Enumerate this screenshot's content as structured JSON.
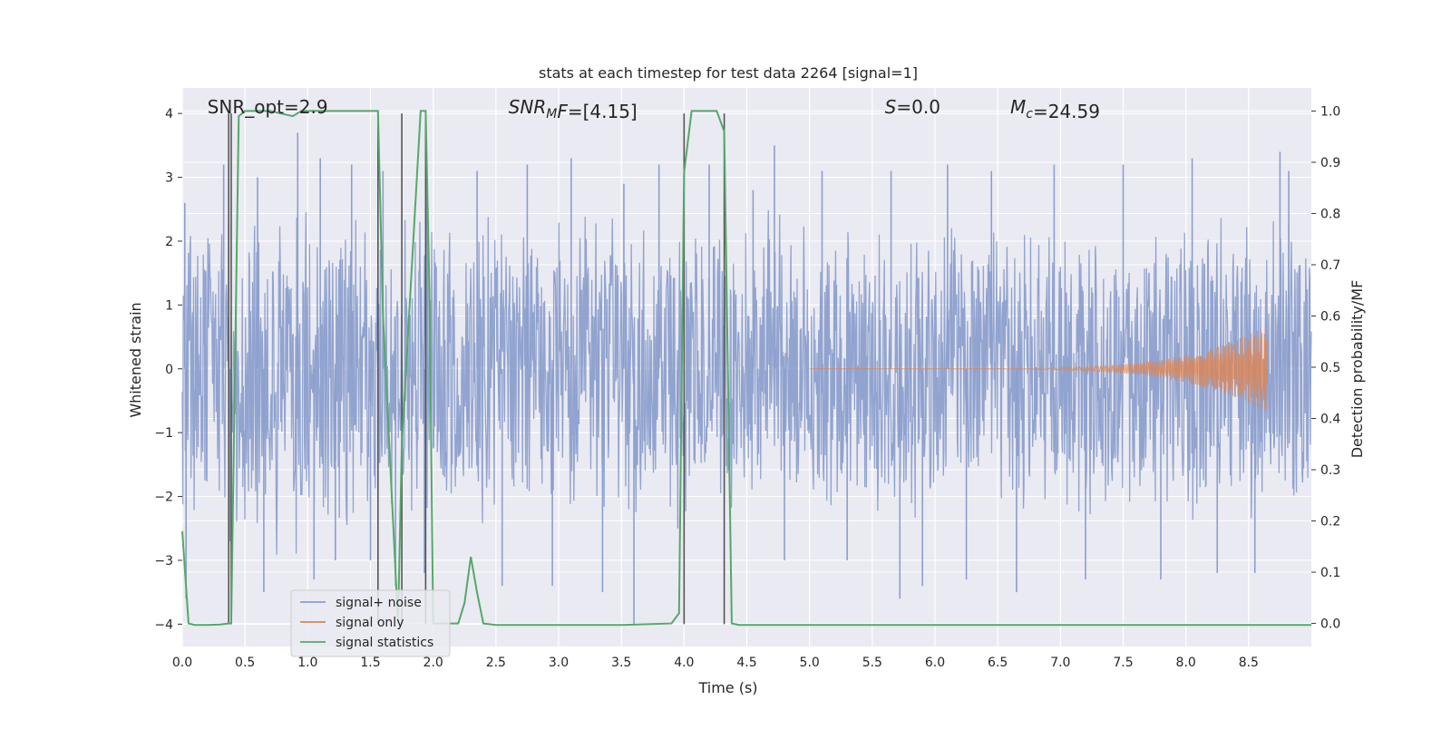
{
  "chart_data": {
    "type": "line",
    "title": "stats at each timestep for test data 2264 [signal=1]",
    "xlabel": "Time (s)",
    "ylabel": "Whitened strain",
    "y2label": "Detection probability/MF",
    "xlim": [
      0,
      9.0
    ],
    "ylim": [
      -4.35,
      4.4
    ],
    "y2lim": [
      -0.045,
      1.045
    ],
    "xticks": [
      0.0,
      0.5,
      1.0,
      1.5,
      2.0,
      2.5,
      3.0,
      3.5,
      4.0,
      4.5,
      5.0,
      5.5,
      6.0,
      6.5,
      7.0,
      7.5,
      8.0,
      8.5
    ],
    "xtick_labels": [
      "0.0",
      "0.5",
      "1.0",
      "1.5",
      "2.0",
      "2.5",
      "3.0",
      "3.5",
      "4.0",
      "4.5",
      "5.0",
      "5.5",
      "6.0",
      "6.5",
      "7.0",
      "7.5",
      "8.0",
      "8.5"
    ],
    "yticks": [
      -4,
      -3,
      -2,
      -1,
      0,
      1,
      2,
      3,
      4
    ],
    "ytick_labels": [
      "−4",
      "−3",
      "−2",
      "−1",
      "0",
      "1",
      "2",
      "3",
      "4"
    ],
    "y2ticks": [
      0.0,
      0.1,
      0.2,
      0.3,
      0.4,
      0.5,
      0.6,
      0.7,
      0.8,
      0.9,
      1.0
    ],
    "y2tick_labels": [
      "0.0",
      "0.1",
      "0.2",
      "0.3",
      "0.4",
      "0.5",
      "0.6",
      "0.7",
      "0.8",
      "0.9",
      "1.0"
    ],
    "grid": true,
    "legend_position": "lower-left",
    "annotations": [
      {
        "text": "SNR_opt=2.9",
        "x": 0.2,
        "y": 4.1
      },
      {
        "pre": "SNR",
        "sub": "M",
        "post": "F=[4.15]",
        "x": 2.6,
        "y": 4.1
      },
      {
        "pre": "S",
        "sub": "",
        "post": "=0.0",
        "x": 5.6,
        "y": 4.1
      },
      {
        "pre": "M",
        "sub": "c",
        "post": "=24.59",
        "x": 6.6,
        "y": 4.1
      }
    ],
    "vlines": {
      "color": "#555555",
      "x": [
        0.37,
        0.39,
        1.56,
        1.75,
        1.94,
        4.0,
        4.32
      ],
      "ymin": -4.0,
      "ymax": 4.0
    },
    "series": [
      {
        "name": "signal+ noise",
        "color": "#8c9fcc",
        "noise_envelope": [
          [
            0.0,
            2.4
          ],
          [
            0.5,
            2.6
          ],
          [
            1.0,
            2.6
          ],
          [
            1.5,
            2.4
          ],
          [
            2.0,
            2.5
          ],
          [
            2.5,
            2.5
          ],
          [
            3.0,
            2.4
          ],
          [
            3.5,
            2.4
          ],
          [
            4.0,
            2.4
          ],
          [
            4.5,
            2.3
          ],
          [
            5.0,
            2.3
          ],
          [
            5.5,
            2.4
          ],
          [
            6.0,
            2.4
          ],
          [
            6.5,
            2.4
          ],
          [
            7.0,
            2.4
          ],
          [
            7.5,
            2.4
          ],
          [
            8.0,
            2.4
          ],
          [
            8.5,
            2.4
          ],
          [
            9.0,
            2.4
          ]
        ],
        "peaks": [
          [
            0.02,
            2.6
          ],
          [
            0.03,
            -3.6
          ],
          [
            0.33,
            3.2
          ],
          [
            0.37,
            2.3
          ],
          [
            0.38,
            -2.7
          ],
          [
            0.6,
            3.0
          ],
          [
            0.65,
            -3.5
          ],
          [
            0.92,
            3.7
          ],
          [
            1.05,
            -3.3
          ],
          [
            1.1,
            3.3
          ],
          [
            1.22,
            -3.0
          ],
          [
            1.35,
            3.2
          ],
          [
            1.5,
            -3.0
          ],
          [
            1.6,
            3.1
          ],
          [
            1.7,
            -3.4
          ],
          [
            1.95,
            3.2
          ],
          [
            1.93,
            -3.2
          ],
          [
            2.35,
            3.1
          ],
          [
            2.55,
            -3.4
          ],
          [
            2.75,
            3.2
          ],
          [
            2.95,
            -3.4
          ],
          [
            3.1,
            3.3
          ],
          [
            3.35,
            -3.5
          ],
          [
            3.52,
            2.9
          ],
          [
            3.6,
            -4.0
          ],
          [
            3.8,
            3.2
          ],
          [
            3.95,
            -2.5
          ],
          [
            4.2,
            3.2
          ],
          [
            4.55,
            2.8
          ],
          [
            4.72,
            3.5
          ],
          [
            4.8,
            -3.0
          ],
          [
            5.1,
            3.1
          ],
          [
            5.3,
            -3.0
          ],
          [
            5.65,
            3.1
          ],
          [
            5.72,
            -3.6
          ],
          [
            5.9,
            -3.4
          ],
          [
            6.1,
            3.2
          ],
          [
            6.25,
            -3.3
          ],
          [
            6.45,
            3.1
          ],
          [
            6.65,
            -3.5
          ],
          [
            6.95,
            3.2
          ],
          [
            7.2,
            -3.3
          ],
          [
            7.5,
            3.2
          ],
          [
            7.8,
            -3.3
          ],
          [
            8.05,
            3.3
          ],
          [
            8.25,
            -3.2
          ],
          [
            8.55,
            -3.2
          ],
          [
            8.75,
            3.4
          ],
          [
            8.82,
            3.1
          ]
        ]
      },
      {
        "name": "signal only",
        "color": "#dd8452",
        "chirp_start": 5.0,
        "chirp_end": 8.65,
        "peak_amplitude": 0.7
      },
      {
        "name": "signal statistics",
        "color": "#55a868",
        "axis": "right",
        "x": [
          0.0,
          0.05,
          0.1,
          0.2,
          0.3,
          0.37,
          0.39,
          0.45,
          0.5,
          0.7,
          0.88,
          0.95,
          1.0,
          1.3,
          1.56,
          1.6,
          1.72,
          1.75,
          1.9,
          1.94,
          1.97,
          2.0,
          2.1,
          2.2,
          2.25,
          2.3,
          2.35,
          2.4,
          2.5,
          3.0,
          3.5,
          3.9,
          3.96,
          4.0,
          4.06,
          4.26,
          4.32,
          4.38,
          4.44,
          5.0,
          6.0,
          7.0,
          8.0,
          9.0
        ],
        "y": [
          0.18,
          0.0,
          -0.003,
          -0.003,
          -0.002,
          0.0,
          0.0,
          0.99,
          1.0,
          1.0,
          0.99,
          1.0,
          1.0,
          1.0,
          1.0,
          0.6,
          0.0,
          0.35,
          1.0,
          1.0,
          0.65,
          0.0,
          0.0,
          0.0,
          0.04,
          0.13,
          0.06,
          0.0,
          -0.003,
          -0.003,
          -0.003,
          0.0,
          0.02,
          0.88,
          1.0,
          1.0,
          0.96,
          0.0,
          -0.003,
          -0.003,
          -0.003,
          -0.003,
          -0.003,
          -0.003
        ]
      }
    ]
  }
}
